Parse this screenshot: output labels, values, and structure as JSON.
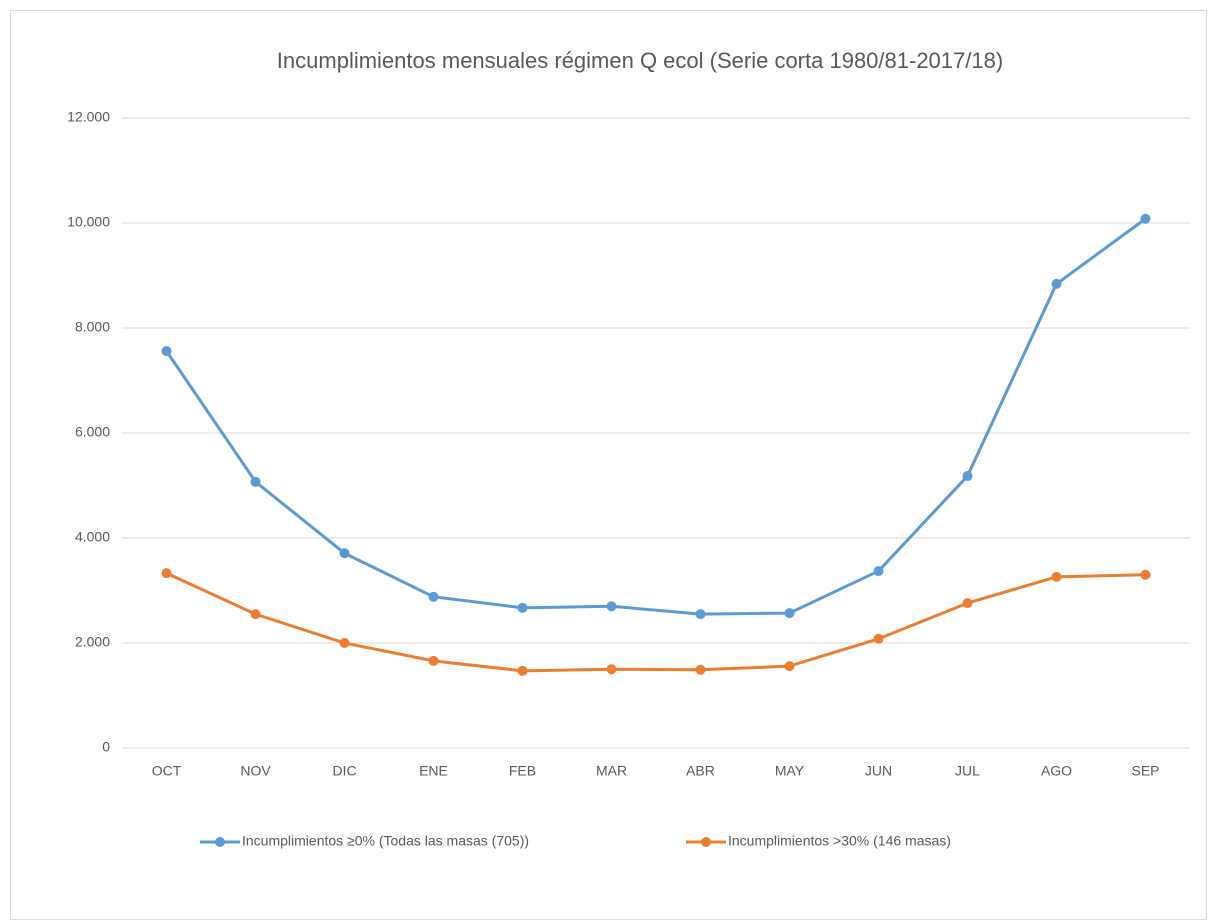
{
  "chart_data": {
    "type": "line",
    "title": "Incumplimientos mensuales régimen Q ecol (Serie corta 1980/81-2017/18)",
    "categories": [
      "OCT",
      "NOV",
      "DIC",
      "ENE",
      "FEB",
      "MAR",
      "ABR",
      "MAY",
      "JUN",
      "JUL",
      "AGO",
      "SEP"
    ],
    "series": [
      {
        "name": "Incumplimientos ≥0% (Todas las masas (705))",
        "color": "#5b9bd5",
        "values": [
          7560,
          5070,
          3710,
          2880,
          2670,
          2700,
          2550,
          2570,
          3370,
          5180,
          8840,
          10080
        ]
      },
      {
        "name": "Incumplimientos >30% (146 masas)",
        "color": "#ed7d31",
        "values": [
          3330,
          2550,
          2000,
          1660,
          1470,
          1500,
          1490,
          1560,
          2080,
          2760,
          3260,
          3300
        ]
      }
    ],
    "ylim": [
      0,
      12000
    ],
    "yticks": [
      0,
      {
        "value": 2000,
        "label": "2.000"
      },
      {
        "value": 4000,
        "label": "4.000"
      },
      {
        "value": 6000,
        "label": "6.000"
      },
      {
        "value": 8000,
        "label": "8.000"
      },
      {
        "value": 10000,
        "label": "10.000"
      },
      {
        "value": 12000,
        "label": "12.000"
      }
    ],
    "grid": true,
    "legend": "bottom"
  }
}
